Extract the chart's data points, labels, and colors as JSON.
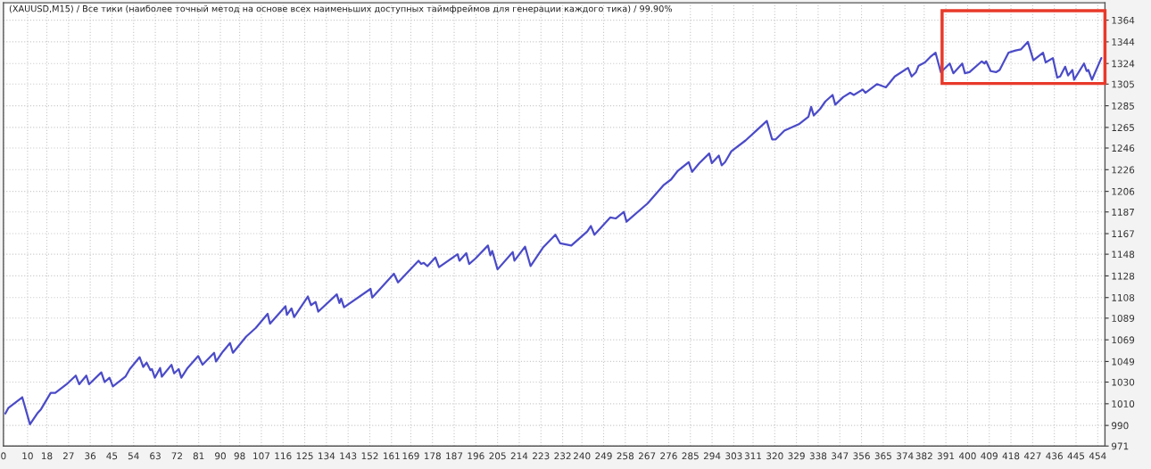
{
  "chart_data": {
    "type": "line",
    "title": "(XAUUSD,M15) / Все тики (наиболее точный метод на основе всех наименьших доступных таймфреймов для генерации каждого тика) / 99.90%",
    "x": [
      0.8,
      2,
      7.8,
      11,
      14,
      15.6,
      19.6,
      21.5,
      26.2,
      30,
      31.4,
      34.4,
      35.5,
      40.6,
      42,
      44,
      45.4,
      50.6,
      52.4,
      56.5,
      58,
      59.4,
      61,
      61.6,
      62.8,
      65,
      65.7,
      69.7,
      70.8,
      72.7,
      73.8,
      76.4,
      80.8,
      82.6,
      87.4,
      88.2,
      91,
      94,
      95.2,
      100.7,
      104.7,
      109.6,
      110.6,
      117,
      117.6,
      119.5,
      120.6,
      126.3,
      127.6,
      129.5,
      130.6,
      138.3,
      139.4,
      140.1,
      141.3,
      152.3,
      153,
      162,
      163.7,
      172.2,
      173.3,
      174.4,
      175.9,
      179.2,
      180.7,
      188.4,
      189.2,
      192,
      193.2,
      195.8,
      201,
      202,
      202.8,
      205,
      211.3,
      212,
      216.4,
      218.7,
      223.8,
      229,
      231,
      235.6,
      242.2,
      243.7,
      245.2,
      251.8,
      254,
      257.4,
      258.5,
      267.3,
      274,
      277,
      279.8,
      284.3,
      285.7,
      288.7,
      292.8,
      293.9,
      296.8,
      298,
      299.4,
      302,
      307.9,
      312.3,
      316.7,
      318.9,
      320.4,
      324,
      330,
      334,
      335.1,
      336.2,
      338.8,
      341,
      344,
      345.1,
      348.4,
      351.3,
      352.8,
      356.5,
      357.6,
      362.4,
      366.1,
      369.8,
      375.3,
      376.8,
      378.6,
      379.7,
      382.3,
      384.5,
      386.7,
      388.9,
      392.6,
      394.1,
      397.8,
      398.9,
      400.8,
      405.9,
      407,
      407.7,
      409.6,
      411.8,
      413.3,
      417,
      419.9,
      422.1,
      425,
      427.3,
      431.3,
      432.4,
      435.4,
      437.2,
      438.4,
      440.5,
      441.7,
      443.5,
      444.2,
      448.3,
      449.4,
      450.1,
      451.6,
      455.5
    ],
    "series": [
      {
        "color": "#4b4bc8",
        "values": [
          1001,
          1006,
          1016,
          991,
          1001,
          1005,
          1020,
          1020,
          1028,
          1036,
          1028,
          1036,
          1028,
          1039,
          1030,
          1034,
          1026,
          1035,
          1042,
          1053,
          1044,
          1048,
          1041,
          1042,
          1034,
          1043,
          1035,
          1046,
          1038,
          1042,
          1034,
          1043,
          1054,
          1046,
          1057,
          1049,
          1058,
          1066,
          1057,
          1072,
          1080,
          1093,
          1084,
          1100,
          1092,
          1098,
          1090,
          1109,
          1101,
          1104,
          1095,
          1111,
          1103,
          1107,
          1099,
          1116,
          1108,
          1130,
          1122,
          1142,
          1139,
          1140,
          1137,
          1145,
          1136,
          1148,
          1142,
          1149,
          1139,
          1144,
          1156,
          1147,
          1151,
          1134,
          1150,
          1142,
          1155,
          1137,
          1154,
          1166,
          1158,
          1156,
          1169,
          1174,
          1166,
          1182,
          1181,
          1187,
          1178,
          1195,
          1212,
          1217,
          1225,
          1233,
          1224,
          1232,
          1241,
          1232,
          1239,
          1230,
          1233,
          1243,
          1253,
          1262,
          1271,
          1254,
          1254,
          1262,
          1268,
          1275,
          1284,
          1276,
          1282,
          1289,
          1295,
          1286,
          1293,
          1297,
          1295,
          1300,
          1297,
          1305,
          1302,
          1312,
          1320,
          1312,
          1316,
          1322,
          1325,
          1330,
          1334,
          1316,
          1324,
          1315,
          1324,
          1315,
          1316,
          1326,
          1324,
          1326,
          1317,
          1316,
          1318,
          1334,
          1336,
          1337,
          1344,
          1327,
          1334,
          1325,
          1329,
          1311,
          1312,
          1321,
          1313,
          1318,
          1309,
          1324,
          1317,
          1318,
          1309,
          1329
        ]
      }
    ],
    "xlim": [
      0,
      457
    ],
    "ylim": [
      971,
      1380
    ],
    "xticks": [
      0,
      10,
      18,
      27,
      36,
      45,
      54,
      63,
      72,
      81,
      90,
      98,
      107,
      116,
      125,
      134,
      143,
      152,
      161,
      169,
      178,
      187,
      196,
      205,
      214,
      223,
      232,
      240,
      249,
      258,
      267,
      276,
      285,
      294,
      303,
      311,
      320,
      329,
      338,
      347,
      356,
      365,
      374,
      382,
      391,
      400,
      409,
      418,
      427,
      436,
      445,
      454
    ],
    "yticks": [
      971,
      990,
      1010,
      1030,
      1049,
      1069,
      1089,
      1108,
      1128,
      1148,
      1167,
      1187,
      1206,
      1226,
      1246,
      1265,
      1285,
      1305,
      1324,
      1344,
      1364
    ],
    "grid": true
  }
}
